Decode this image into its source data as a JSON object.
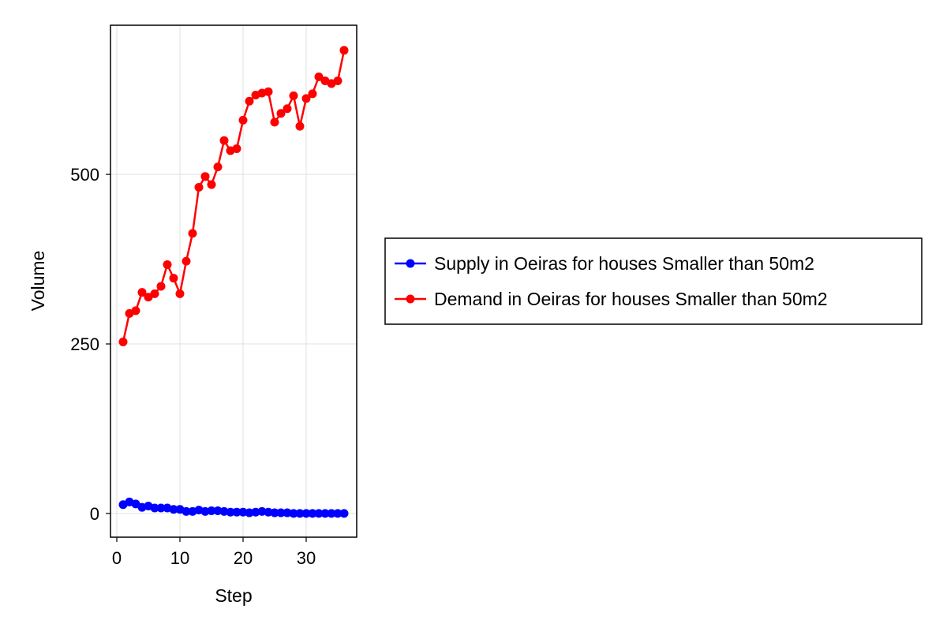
{
  "chart_data": {
    "type": "line",
    "xlabel": "Step",
    "ylabel": "Volume",
    "xlim": [
      -1,
      38
    ],
    "ylim": [
      -35,
      720
    ],
    "xticks": [
      0,
      10,
      20,
      30
    ],
    "yticks": [
      0,
      250,
      500
    ],
    "grid": true,
    "legend_position": "right",
    "series": [
      {
        "name": "Supply in Oeiras for houses Smaller than 50m2",
        "color": "#0000ff",
        "x": [
          1,
          2,
          3,
          4,
          5,
          6,
          7,
          8,
          9,
          10,
          11,
          12,
          13,
          14,
          15,
          16,
          17,
          18,
          19,
          20,
          21,
          22,
          23,
          24,
          25,
          26,
          27,
          28,
          29,
          30,
          31,
          32,
          33,
          34,
          35,
          36
        ],
        "y": [
          13,
          17,
          14,
          9,
          11,
          8,
          8,
          8,
          6,
          6,
          3,
          3,
          5,
          3,
          4,
          4,
          3,
          2,
          2,
          2,
          1,
          2,
          3,
          2,
          1,
          1,
          1,
          0,
          0,
          0,
          0,
          0,
          0,
          0,
          0,
          0
        ]
      },
      {
        "name": "Demand in Oeiras for houses Smaller than 50m2",
        "color": "#ff0000",
        "x": [
          1,
          2,
          3,
          4,
          5,
          6,
          7,
          8,
          9,
          10,
          11,
          12,
          13,
          14,
          15,
          16,
          17,
          18,
          19,
          20,
          21,
          22,
          23,
          24,
          25,
          26,
          27,
          28,
          29,
          30,
          31,
          32,
          33,
          34,
          35,
          36
        ],
        "y": [
          253,
          295,
          299,
          326,
          319,
          324,
          335,
          367,
          347,
          324,
          372,
          413,
          481,
          497,
          485,
          511,
          550,
          535,
          538,
          580,
          608,
          617,
          620,
          622,
          577,
          590,
          597,
          616,
          571,
          612,
          619,
          644,
          638,
          634,
          638,
          683
        ]
      }
    ]
  }
}
